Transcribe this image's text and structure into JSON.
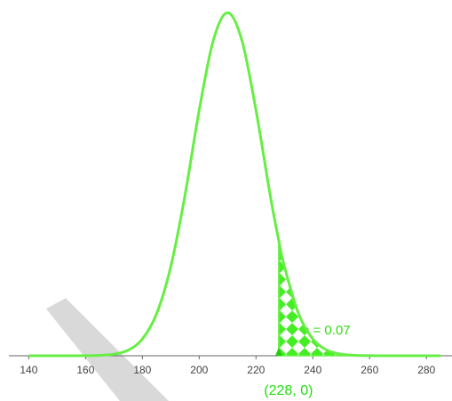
{
  "chart_data": {
    "type": "line",
    "x": [
      140,
      145,
      150,
      155,
      160,
      165,
      170,
      175,
      180,
      185,
      190,
      195,
      200,
      205,
      210,
      215,
      220,
      225,
      228,
      230,
      235,
      240,
      245,
      250,
      255,
      260,
      265,
      270,
      275,
      280,
      285
    ],
    "series": [
      {
        "color": "#66ee44",
        "values": [
          0,
          0,
          0,
          1.2e-06,
          7e-06,
          4e-05,
          0.00015,
          0.00053,
          0.0016,
          0.004,
          0.0085,
          0.0153,
          0.0234,
          0.0301,
          0.0327,
          0.0301,
          0.0234,
          0.0153,
          0.011,
          0.0085,
          0.004,
          0.0016,
          0.00053,
          0.00015,
          4e-05,
          7e-06,
          1.2e-06,
          0,
          0,
          0,
          0
        ]
      }
    ],
    "xlim": [
      133,
      289
    ],
    "ylim": [
      0,
      0.034
    ],
    "xticks": [
      140,
      160,
      180,
      200,
      220,
      240,
      260,
      280
    ],
    "point": {
      "x": 228,
      "y": 0,
      "label": "(228, 0)"
    },
    "area_label": "b = 0.07"
  }
}
